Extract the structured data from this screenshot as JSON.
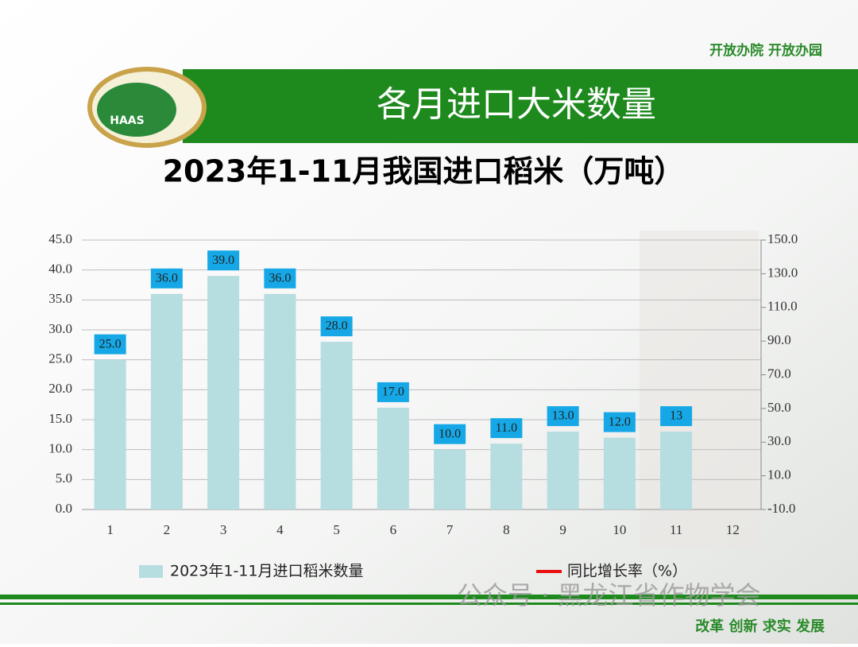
{
  "slogan": "开放办院 开放办园",
  "banner_title": "各月进口大米数量",
  "logo_text": "HAAS",
  "watermark": "公众号 · 黑龙江省作物学会",
  "motto": "改革 创新 求实 发展",
  "chart_data": {
    "type": "bar",
    "title": "2023年1-11月我国进口稻米（万吨）",
    "categories": [
      "1",
      "2",
      "3",
      "4",
      "5",
      "6",
      "7",
      "8",
      "9",
      "10",
      "11",
      "12"
    ],
    "series": [
      {
        "name": "2023年1-11月进口稻米数量",
        "color": "#b6dde0",
        "values": [
          25,
          36,
          39,
          36,
          28,
          17,
          10,
          11,
          13,
          12,
          13,
          null
        ],
        "value_labels": [
          "25.0",
          "36.0",
          "39.0",
          "36.0",
          "28.0",
          "17.0",
          "10.0",
          "11.0",
          "13.0",
          "12.0",
          "13",
          null
        ]
      },
      {
        "name": "同比增长率（%）",
        "color": "#e81010",
        "axis": "y2",
        "type": "line",
        "values": [
          null,
          null,
          null,
          null,
          null,
          null,
          null,
          null,
          null,
          null,
          null,
          null
        ]
      }
    ],
    "ylim": [
      0,
      45
    ],
    "yticks": [
      {
        "value": 0,
        "label": "0.0"
      },
      {
        "value": 5,
        "label": "5.0"
      },
      {
        "value": 10,
        "label": "10.0"
      },
      {
        "value": 15,
        "label": "15.0"
      },
      {
        "value": 20,
        "label": "20.0"
      },
      {
        "value": 25,
        "label": "25.0"
      },
      {
        "value": 30,
        "label": "30.0"
      },
      {
        "value": 35,
        "label": "35.0"
      },
      {
        "value": 40,
        "label": "40.0"
      },
      {
        "value": 45,
        "label": "45.0"
      }
    ],
    "y2lim": [
      -10,
      150
    ],
    "y2ticks": [
      {
        "value": -10,
        "label": "-10.0"
      },
      {
        "value": 10,
        "label": "10.0"
      },
      {
        "value": 30,
        "label": "30.0"
      },
      {
        "value": 50,
        "label": "50.0"
      },
      {
        "value": 70,
        "label": "70.0"
      },
      {
        "value": 90,
        "label": "90.0"
      },
      {
        "value": 110,
        "label": "110.0"
      },
      {
        "value": 130,
        "label": "130.0"
      },
      {
        "value": 150,
        "label": "150.0"
      }
    ],
    "grid": true,
    "label_box_color": "#16a8e6"
  }
}
